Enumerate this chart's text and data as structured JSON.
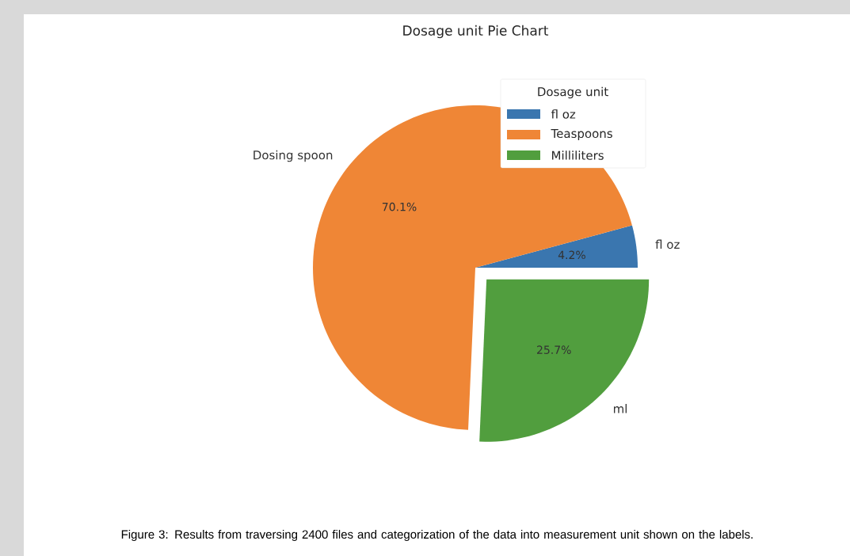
{
  "chart_data": {
    "type": "pie",
    "title": "Dosage unit Pie Chart",
    "legend_title": "Dosage unit",
    "legend": "top right",
    "categories": [
      "fl oz",
      "Teaspoons",
      "Milliliters"
    ],
    "values": [
      4.2,
      70.1,
      25.7
    ],
    "value_labels": [
      "4.2%",
      "70.1%",
      "25.7%"
    ],
    "colors": [
      "#3a76af",
      "#ef8636",
      "#519e3e"
    ],
    "annotations": [
      "fl oz",
      "Dosing spoon",
      "ml",
      "Figure 3: Results from traversing 2400 files and categorization of the data into measurement unit shown on the labels."
    ]
  }
}
